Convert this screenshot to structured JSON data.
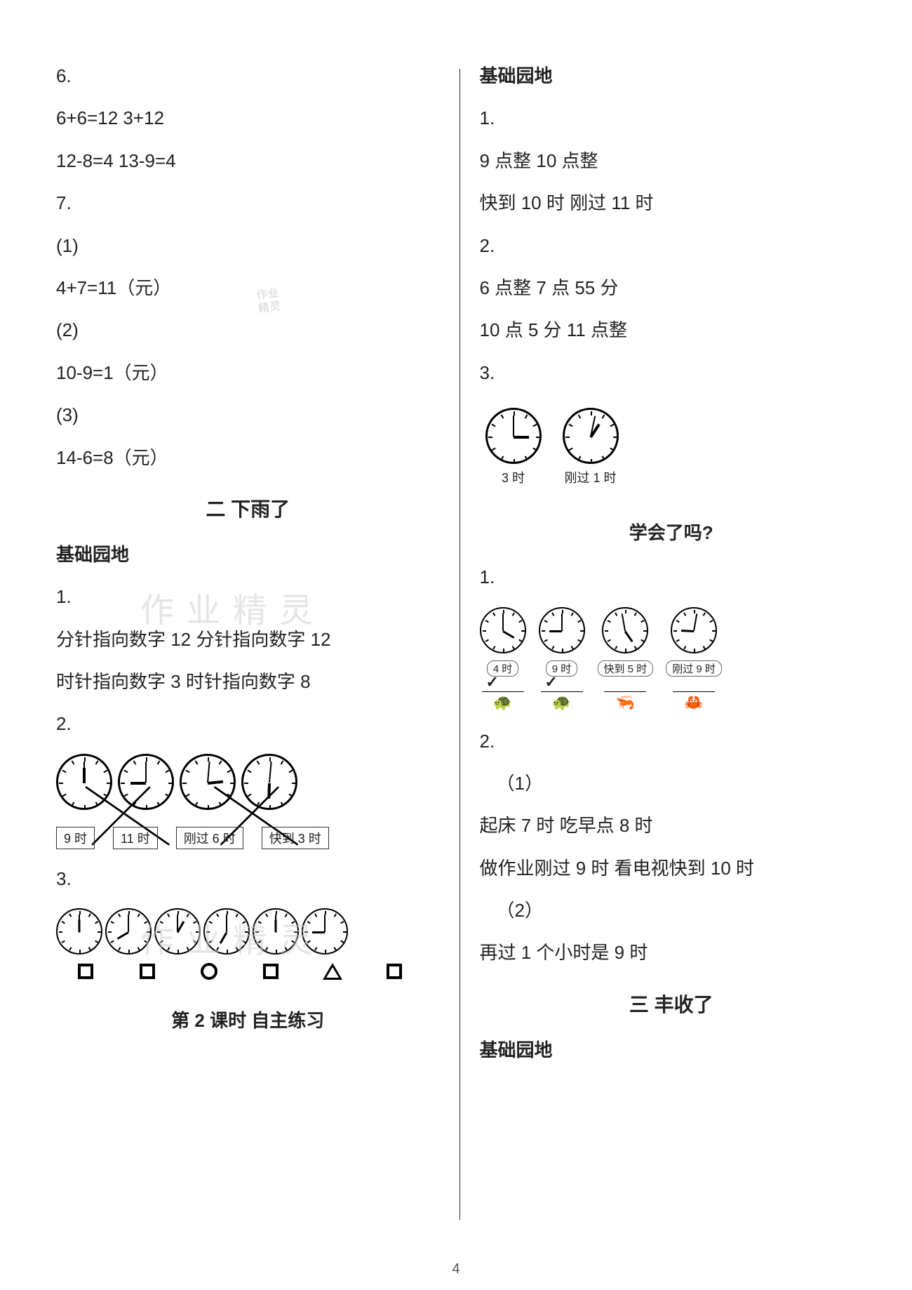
{
  "left": {
    "l1": "6.",
    "l2": "6+6=12   3+12",
    "l3": "12-8=4   13-9=4",
    "l4": "7.",
    "l5": "(1)",
    "l6": "4+7=11（元）",
    "l7": "(2)",
    "l8": "10-9=1（元）",
    "l9": "(3)",
    "l10": "14-6=8（元）",
    "title1": "二   下雨了",
    "sec1": "基础园地",
    "q1": "1.",
    "q1a": "分针指向数字 12      分针指向数字 12",
    "q1b": "时针指向数字 3       时针指向数字 8",
    "q2": "2.",
    "frog_labels": [
      "9 时",
      "11 时",
      "刚过 6 时",
      "快到 3 时"
    ],
    "q3": "3.",
    "title2": "第 2 课时   自主练习"
  },
  "right": {
    "sec1": "基础园地",
    "q1": "1.",
    "q1a": "9 点整      10 点整",
    "q1b": "快到 10 时      刚过 11 时",
    "q2": "2.",
    "q2a": "6 点整      7 点 55 分",
    "q2b": "10 点 5 分      11 点整",
    "q3": "3.",
    "clock3_labels": [
      "3 时",
      "刚过 1 时"
    ],
    "title_learn": "学会了吗?",
    "lq1": "1.",
    "four_labels": [
      "4 时",
      "9 时",
      "快到 5 时",
      "刚过 9 时"
    ],
    "checks": [
      "✓",
      "✓",
      "",
      ""
    ],
    "lq2": "2.",
    "lq2_1": "（1）",
    "lq2_1a": "起床 7 时       吃早点 8 时",
    "lq2_1b": "做作业刚过 9 时       看电视快到 10 时",
    "lq2_2": "（2）",
    "lq2_2a": "再过 1 个小时是 9 时",
    "title3": "三   丰收了",
    "sec3": "基础园地"
  },
  "watermarks": {
    "w1": "作业精灵",
    "w2": "作业精灵"
  },
  "pagenum": "4",
  "colors": {
    "text": "#222222",
    "bg": "#ffffff",
    "wm": "#cccccc"
  }
}
